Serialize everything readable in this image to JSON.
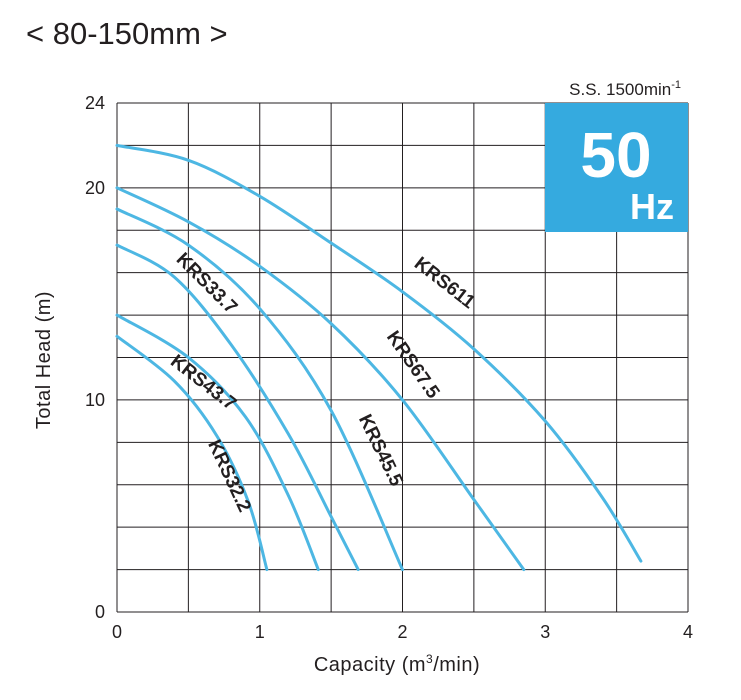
{
  "heading": "< 80-150mm >",
  "badge": {
    "frequency": "50",
    "unit": "Hz",
    "color": "#35aadf"
  },
  "speed": {
    "label": "S.S. 1500min",
    "exponent": "-1"
  },
  "curve_color": "#4db7e3",
  "chart_data": {
    "type": "line",
    "title": "< 80-150mm >",
    "xlabel_main": "Capacity (m",
    "xlabel_sup": "3",
    "xlabel_end": "/min)",
    "ylabel": "Total Head (m)",
    "xlim": [
      0,
      4
    ],
    "ylim": [
      0,
      24
    ],
    "x_ticks": [
      "0",
      "1",
      "2",
      "3",
      "4"
    ],
    "y_ticks": [
      "0",
      "10",
      "20",
      "24"
    ],
    "grid": true,
    "series": [
      {
        "name": "KRS611",
        "x": [
          0,
          0.5,
          1.0,
          1.5,
          2.0,
          2.5,
          3.0,
          3.4,
          3.67
        ],
        "y": [
          22,
          21.3,
          19.6,
          17.4,
          15.1,
          12.4,
          9.0,
          5.4,
          2.4
        ]
      },
      {
        "name": "KRS67.5",
        "x": [
          0,
          0.5,
          1.0,
          1.5,
          2.0,
          2.5,
          2.85
        ],
        "y": [
          20,
          18.4,
          16.3,
          13.6,
          10.0,
          5.3,
          2.0
        ]
      },
      {
        "name": "KRS45.5",
        "x": [
          0,
          0.5,
          1.0,
          1.5,
          2.0
        ],
        "y": [
          19.0,
          17.3,
          14.3,
          9.5,
          2.0
        ]
      },
      {
        "name": "KRS33.7",
        "x": [
          0,
          0.4,
          0.8,
          1.2,
          1.5,
          1.69
        ],
        "y": [
          17.3,
          15.8,
          12.6,
          8.4,
          4.5,
          2.0
        ]
      },
      {
        "name": "KRS43.7",
        "x": [
          0,
          0.5,
          0.9,
          1.2,
          1.41
        ],
        "y": [
          14.0,
          12.0,
          9.2,
          5.5,
          2.0
        ]
      },
      {
        "name": "KRS32.2",
        "x": [
          0,
          0.4,
          0.7,
          0.92,
          1.05
        ],
        "y": [
          13.0,
          10.9,
          8.3,
          5.2,
          2.0
        ]
      }
    ]
  }
}
